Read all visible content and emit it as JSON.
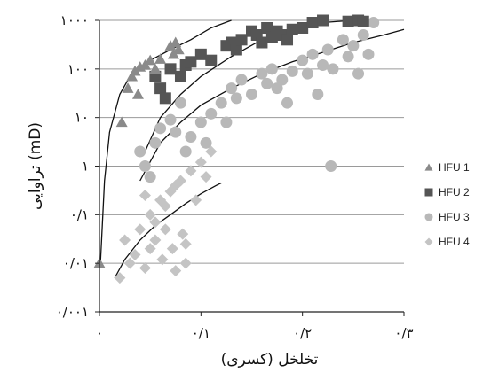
{
  "chart_data": {
    "type": "scatter",
    "xlabel": "تخلخل (کسری)",
    "ylabel": "تراوایی (mD)",
    "x_scale": "linear",
    "y_scale": "log",
    "xlim": [
      0,
      0.3
    ],
    "ylim": [
      0.001,
      1000
    ],
    "grid": true,
    "legend_position": "right",
    "x_ticks": [
      {
        "value": 0,
        "label": "۰"
      },
      {
        "value": 0.1,
        "label": "۰/۱"
      },
      {
        "value": 0.2,
        "label": "۰/۲"
      },
      {
        "value": 0.3,
        "label": "۰/۳"
      }
    ],
    "y_ticks": [
      {
        "value": 0.001,
        "label": "۰/۰۰۱"
      },
      {
        "value": 0.01,
        "label": "۰/۰۱"
      },
      {
        "value": 0.1,
        "label": "۰/۱"
      },
      {
        "value": 1,
        "label": "۱"
      },
      {
        "value": 10,
        "label": "۱۰"
      },
      {
        "value": 100,
        "label": "۱۰۰"
      },
      {
        "value": 1000,
        "label": "۱۰۰۰"
      }
    ],
    "series": [
      {
        "name": "HFU 1",
        "marker": "triangle",
        "color": "#8a8a8a",
        "points": [
          [
            0.0,
            0.01
          ],
          [
            0.022,
            8
          ],
          [
            0.028,
            40
          ],
          [
            0.032,
            70
          ],
          [
            0.035,
            90
          ],
          [
            0.038,
            30
          ],
          [
            0.04,
            110
          ],
          [
            0.045,
            120
          ],
          [
            0.05,
            150
          ],
          [
            0.055,
            100
          ],
          [
            0.06,
            160
          ],
          [
            0.07,
            300
          ],
          [
            0.075,
            350
          ],
          [
            0.078,
            250
          ],
          [
            0.073,
            200
          ]
        ],
        "fit": [
          [
            0.001,
            0.01
          ],
          [
            0.005,
            0.5
          ],
          [
            0.01,
            5
          ],
          [
            0.02,
            30
          ],
          [
            0.03,
            70
          ],
          [
            0.05,
            150
          ],
          [
            0.07,
            250
          ],
          [
            0.09,
            400
          ],
          [
            0.11,
            700
          ],
          [
            0.13,
            1000
          ]
        ]
      },
      {
        "name": "HFU 2",
        "marker": "square",
        "color": "#555555",
        "points": [
          [
            0.055,
            70
          ],
          [
            0.06,
            40
          ],
          [
            0.065,
            25
          ],
          [
            0.07,
            100
          ],
          [
            0.08,
            70
          ],
          [
            0.085,
            120
          ],
          [
            0.09,
            140
          ],
          [
            0.1,
            200
          ],
          [
            0.11,
            150
          ],
          [
            0.125,
            300
          ],
          [
            0.13,
            350
          ],
          [
            0.135,
            250
          ],
          [
            0.14,
            400
          ],
          [
            0.15,
            600
          ],
          [
            0.155,
            500
          ],
          [
            0.16,
            350
          ],
          [
            0.165,
            700
          ],
          [
            0.17,
            450
          ],
          [
            0.175,
            600
          ],
          [
            0.18,
            500
          ],
          [
            0.185,
            400
          ],
          [
            0.19,
            650
          ],
          [
            0.2,
            700
          ],
          [
            0.21,
            900
          ],
          [
            0.22,
            1000
          ],
          [
            0.245,
            950
          ],
          [
            0.255,
            1000
          ],
          [
            0.26,
            950
          ]
        ],
        "fit": [
          [
            0.045,
            2
          ],
          [
            0.06,
            10
          ],
          [
            0.08,
            30
          ],
          [
            0.1,
            70
          ],
          [
            0.13,
            180
          ],
          [
            0.16,
            400
          ],
          [
            0.19,
            650
          ],
          [
            0.22,
            900
          ],
          [
            0.25,
            1000
          ]
        ]
      },
      {
        "name": "HFU 3",
        "marker": "circle",
        "color": "#b8b8b8",
        "points": [
          [
            0.04,
            2
          ],
          [
            0.045,
            1
          ],
          [
            0.05,
            0.6
          ],
          [
            0.055,
            3
          ],
          [
            0.06,
            6
          ],
          [
            0.07,
            9
          ],
          [
            0.075,
            5
          ],
          [
            0.08,
            20
          ],
          [
            0.085,
            2
          ],
          [
            0.09,
            4
          ],
          [
            0.1,
            8
          ],
          [
            0.105,
            3
          ],
          [
            0.11,
            12
          ],
          [
            0.12,
            20
          ],
          [
            0.125,
            8
          ],
          [
            0.13,
            40
          ],
          [
            0.135,
            25
          ],
          [
            0.14,
            60
          ],
          [
            0.15,
            30
          ],
          [
            0.16,
            80
          ],
          [
            0.165,
            50
          ],
          [
            0.17,
            100
          ],
          [
            0.175,
            40
          ],
          [
            0.18,
            60
          ],
          [
            0.185,
            20
          ],
          [
            0.19,
            90
          ],
          [
            0.2,
            150
          ],
          [
            0.205,
            80
          ],
          [
            0.21,
            200
          ],
          [
            0.215,
            30
          ],
          [
            0.22,
            120
          ],
          [
            0.225,
            250
          ],
          [
            0.23,
            100
          ],
          [
            0.24,
            400
          ],
          [
            0.245,
            180
          ],
          [
            0.25,
            300
          ],
          [
            0.255,
            80
          ],
          [
            0.26,
            500
          ],
          [
            0.265,
            200
          ],
          [
            0.27,
            900
          ],
          [
            0.228,
            1
          ]
        ],
        "fit": [
          [
            0.04,
            0.5
          ],
          [
            0.06,
            3
          ],
          [
            0.08,
            8
          ],
          [
            0.1,
            18
          ],
          [
            0.13,
            40
          ],
          [
            0.16,
            80
          ],
          [
            0.19,
            140
          ],
          [
            0.22,
            220
          ],
          [
            0.25,
            350
          ],
          [
            0.28,
            500
          ],
          [
            0.3,
            650
          ]
        ]
      },
      {
        "name": "HFU 4",
        "marker": "diamond",
        "color": "#c4c4c4",
        "points": [
          [
            0.02,
            0.005
          ],
          [
            0.025,
            0.03
          ],
          [
            0.03,
            0.01
          ],
          [
            0.035,
            0.015
          ],
          [
            0.04,
            0.05
          ],
          [
            0.045,
            0.008
          ],
          [
            0.05,
            0.02
          ],
          [
            0.05,
            0.1
          ],
          [
            0.055,
            0.03
          ],
          [
            0.06,
            0.2
          ],
          [
            0.062,
            0.012
          ],
          [
            0.065,
            0.05
          ],
          [
            0.07,
            0.3
          ],
          [
            0.072,
            0.02
          ],
          [
            0.075,
            0.007
          ],
          [
            0.08,
            0.5
          ],
          [
            0.082,
            0.04
          ],
          [
            0.085,
            0.01
          ],
          [
            0.09,
            0.8
          ],
          [
            0.095,
            0.2
          ],
          [
            0.1,
            1.2
          ],
          [
            0.105,
            0.6
          ],
          [
            0.11,
            2
          ],
          [
            0.065,
            0.15
          ],
          [
            0.055,
            0.07
          ],
          [
            0.045,
            0.25
          ],
          [
            0.075,
            0.4
          ],
          [
            0.085,
            0.025
          ]
        ],
        "fit": [
          [
            0.015,
            0.005
          ],
          [
            0.025,
            0.012
          ],
          [
            0.04,
            0.03
          ],
          [
            0.055,
            0.06
          ],
          [
            0.07,
            0.1
          ],
          [
            0.085,
            0.17
          ],
          [
            0.1,
            0.27
          ],
          [
            0.115,
            0.4
          ],
          [
            0.12,
            0.45
          ]
        ]
      }
    ]
  }
}
